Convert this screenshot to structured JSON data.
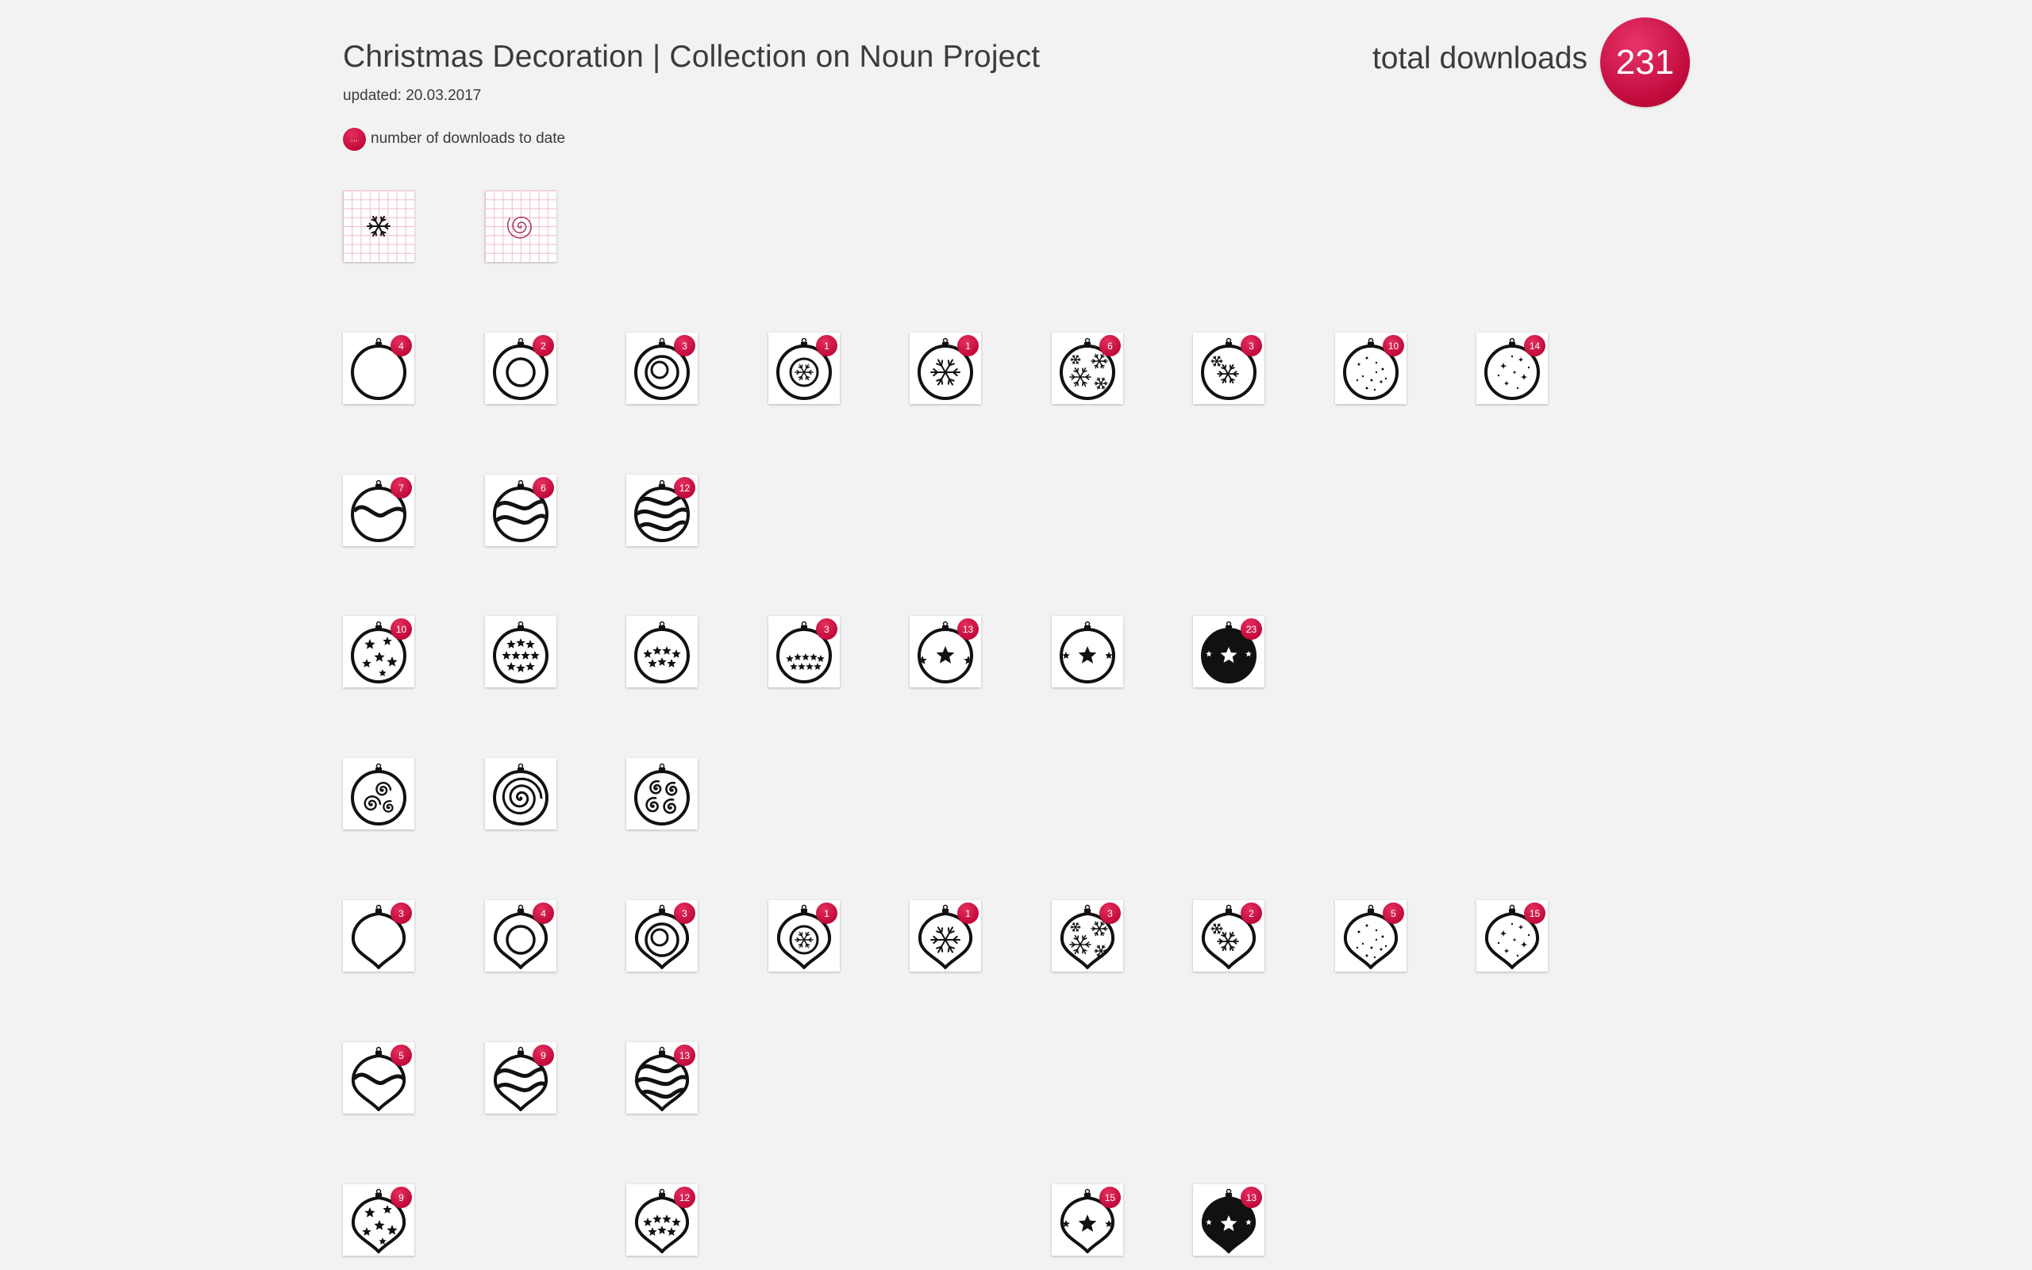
{
  "header": {
    "title": "Christmas Decoration | Collection on Noun Project",
    "updated": "updated: 20.03.2017",
    "legend_dot": "...",
    "legend_text": "number of downloads to date",
    "total_label": "total downloads",
    "total_value": "231"
  },
  "colors": {
    "accent": "#c80d40",
    "background": "#f2f2f2",
    "grid": "#f3b9c9"
  },
  "rows": [
    [
      {
        "icon": "snowflake-grid-icon",
        "grid": true
      },
      {
        "icon": "spiral-grid-icon",
        "grid": true
      }
    ],
    [
      {
        "icon": "ornament-plain-icon",
        "count": "4"
      },
      {
        "icon": "ornament-circle-icon",
        "count": "2"
      },
      {
        "icon": "ornament-double-circle-icon",
        "count": "3"
      },
      {
        "icon": "ornament-snowflake-medallion-icon",
        "count": "1"
      },
      {
        "icon": "ornament-snowflake-icon",
        "count": "1"
      },
      {
        "icon": "ornament-many-snowflakes-icon",
        "count": "6"
      },
      {
        "icon": "ornament-snowflakes-icon",
        "count": "3"
      },
      {
        "icon": "ornament-dots-icon",
        "count": "10"
      },
      {
        "icon": "ornament-sparkles-icon",
        "count": "14"
      }
    ],
    [
      {
        "icon": "ornament-wave-icon",
        "count": "7"
      },
      {
        "icon": "ornament-two-waves-icon",
        "count": "6"
      },
      {
        "icon": "ornament-three-waves-icon",
        "count": "12"
      }
    ],
    [
      {
        "icon": "ornament-scattered-stars-icon",
        "count": "10"
      },
      {
        "icon": "ornament-star-rows-icon"
      },
      {
        "icon": "ornament-star-band-icon"
      },
      {
        "icon": "ornament-star-band-small-icon",
        "count": "3"
      },
      {
        "icon": "ornament-big-star-icon",
        "count": "13"
      },
      {
        "icon": "ornament-star-outline-icon"
      },
      {
        "icon": "ornament-filled-star-icon",
        "count": "23"
      }
    ],
    [
      {
        "icon": "ornament-swirls-icon"
      },
      {
        "icon": "ornament-spiral-icon"
      },
      {
        "icon": "ornament-many-swirls-icon"
      }
    ],
    [
      {
        "icon": "drop-ornament-plain-icon",
        "count": "3"
      },
      {
        "icon": "drop-ornament-circle-icon",
        "count": "4"
      },
      {
        "icon": "drop-ornament-double-circle-icon",
        "count": "3"
      },
      {
        "icon": "drop-ornament-snowflake-medallion-icon",
        "count": "1"
      },
      {
        "icon": "drop-ornament-snowflake-icon",
        "count": "1"
      },
      {
        "icon": "drop-ornament-many-snowflakes-icon",
        "count": "3"
      },
      {
        "icon": "drop-ornament-snowflakes-icon",
        "count": "2"
      },
      {
        "icon": "drop-ornament-dots-icon",
        "count": "5"
      },
      {
        "icon": "drop-ornament-sparkles-icon",
        "count": "15"
      }
    ],
    [
      {
        "icon": "drop-ornament-wave-icon",
        "count": "5"
      },
      {
        "icon": "drop-ornament-two-waves-icon",
        "count": "9"
      },
      {
        "icon": "drop-ornament-three-waves-icon",
        "count": "13"
      }
    ],
    [
      {
        "icon": "drop-ornament-scattered-stars-icon",
        "count": "9"
      },
      null,
      {
        "icon": "drop-ornament-star-band-icon",
        "count": "12"
      },
      null,
      null,
      {
        "icon": "drop-ornament-star-outline-icon",
        "count": "15"
      },
      {
        "icon": "drop-ornament-filled-star-icon",
        "count": "13"
      }
    ]
  ]
}
